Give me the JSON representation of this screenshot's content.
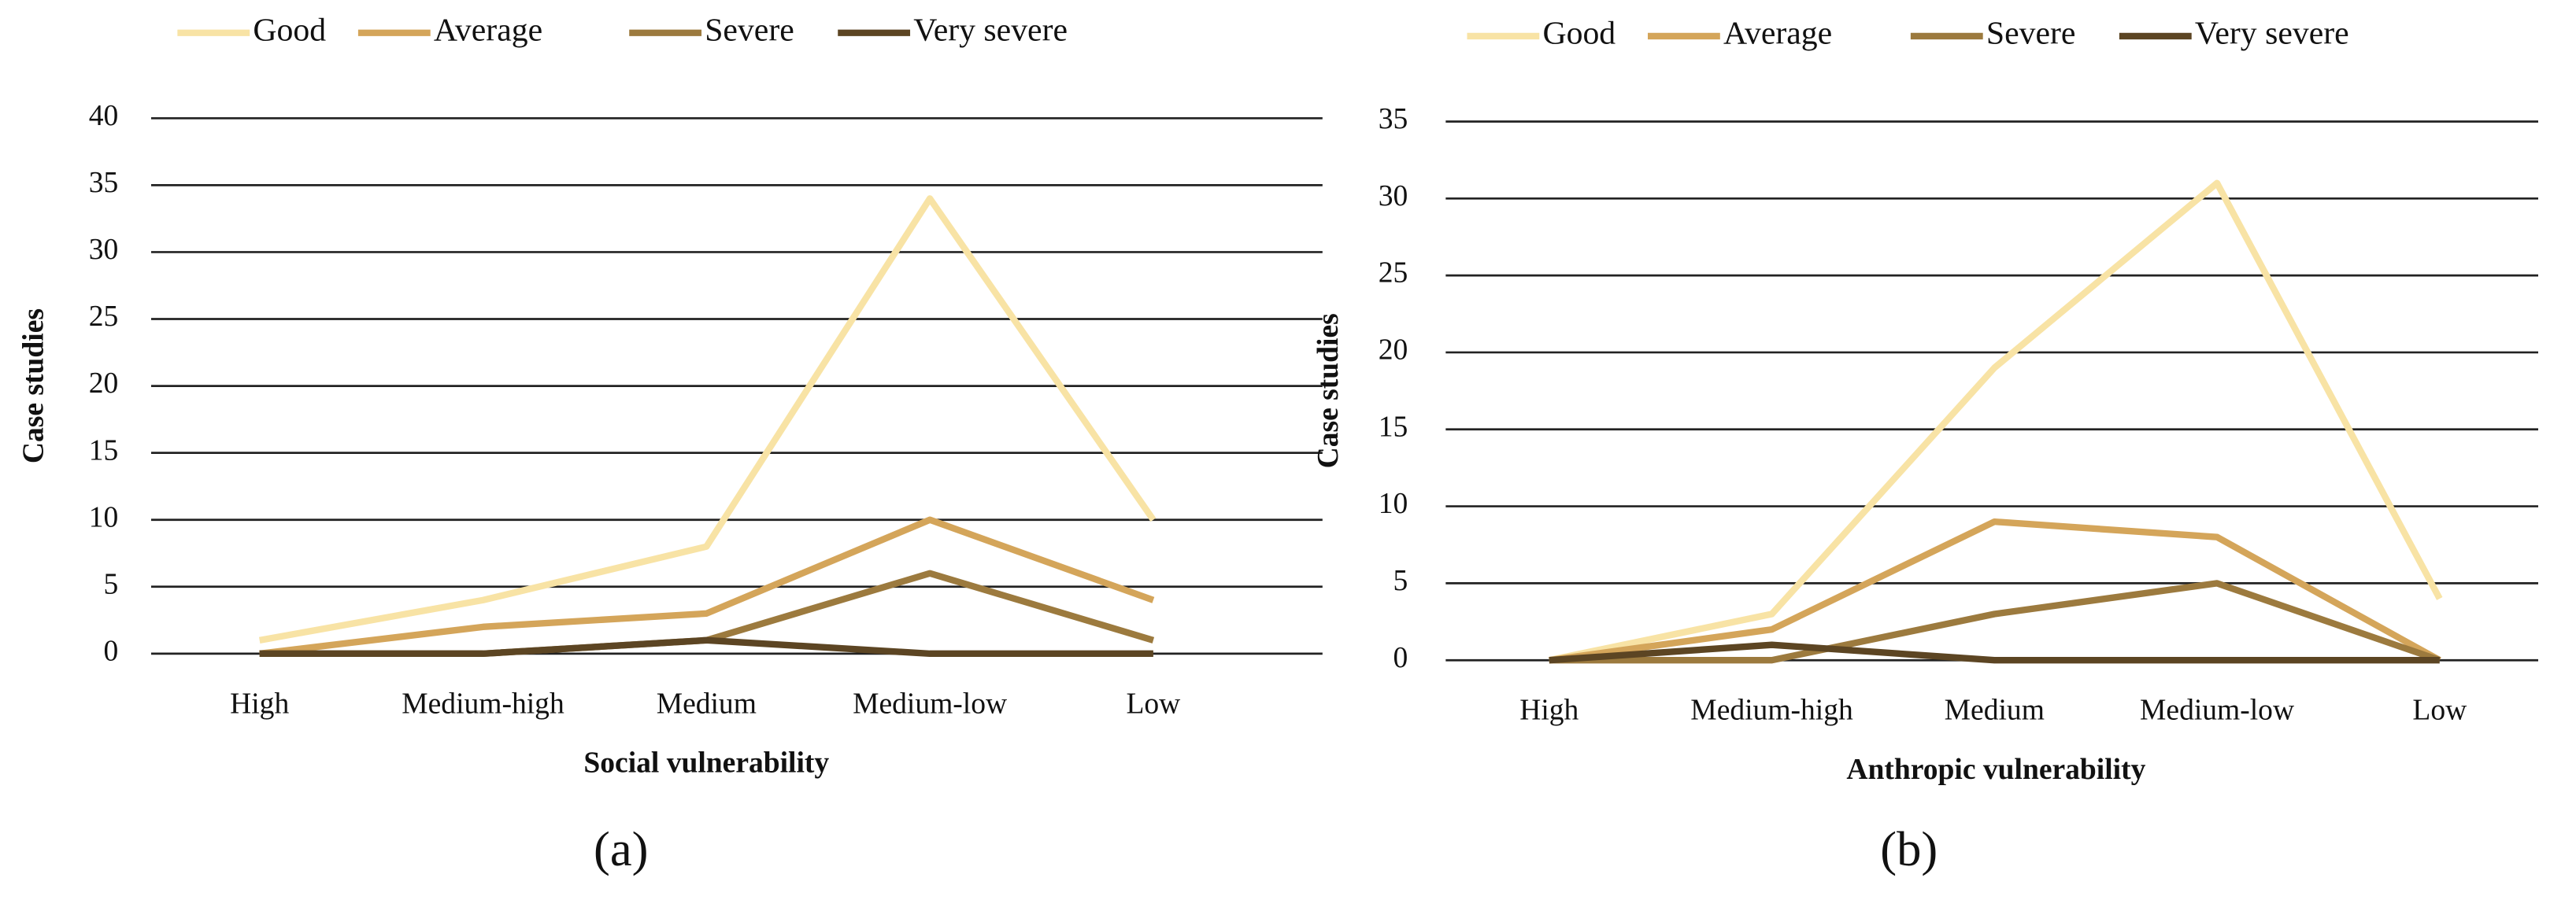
{
  "chart_data": [
    {
      "type": "line",
      "panel": "(a)",
      "x_label": "Social vulnerability",
      "y_label": "Case studies",
      "categories": [
        "High",
        "Medium-high",
        "Medium",
        "Medium-low",
        "Low"
      ],
      "ylim": [
        0,
        40
      ],
      "yticks": [
        0,
        5,
        10,
        15,
        20,
        25,
        30,
        35,
        40
      ],
      "grid": true,
      "series": [
        {
          "name": "Good",
          "color": "#f8e3a5",
          "values": [
            1,
            4,
            8,
            34,
            10
          ]
        },
        {
          "name": "Average",
          "color": "#d4a55a",
          "values": [
            0,
            2,
            3,
            10,
            4
          ]
        },
        {
          "name": "Severe",
          "color": "#9c7a3e",
          "values": [
            0,
            0,
            1,
            6,
            1
          ]
        },
        {
          "name": "Very severe",
          "color": "#5c4523",
          "values": [
            0,
            0,
            1,
            0,
            0
          ]
        }
      ]
    },
    {
      "type": "line",
      "panel": "(b)",
      "x_label": "Anthropic vulnerability",
      "y_label": "Case studies",
      "categories": [
        "High",
        "Medium-high",
        "Medium",
        "Medium-low",
        "Low"
      ],
      "ylim": [
        0,
        35
      ],
      "yticks": [
        0,
        5,
        10,
        15,
        20,
        25,
        30,
        35
      ],
      "grid": true,
      "series": [
        {
          "name": "Good",
          "color": "#f8e3a5",
          "values": [
            0,
            3,
            19,
            31,
            4
          ]
        },
        {
          "name": "Average",
          "color": "#d4a55a",
          "values": [
            0,
            2,
            9,
            8,
            0
          ]
        },
        {
          "name": "Severe",
          "color": "#9c7a3e",
          "values": [
            0,
            0,
            3,
            5,
            0
          ]
        },
        {
          "name": "Very severe",
          "color": "#5c4523",
          "values": [
            0,
            1,
            0,
            0,
            0
          ]
        }
      ]
    }
  ]
}
